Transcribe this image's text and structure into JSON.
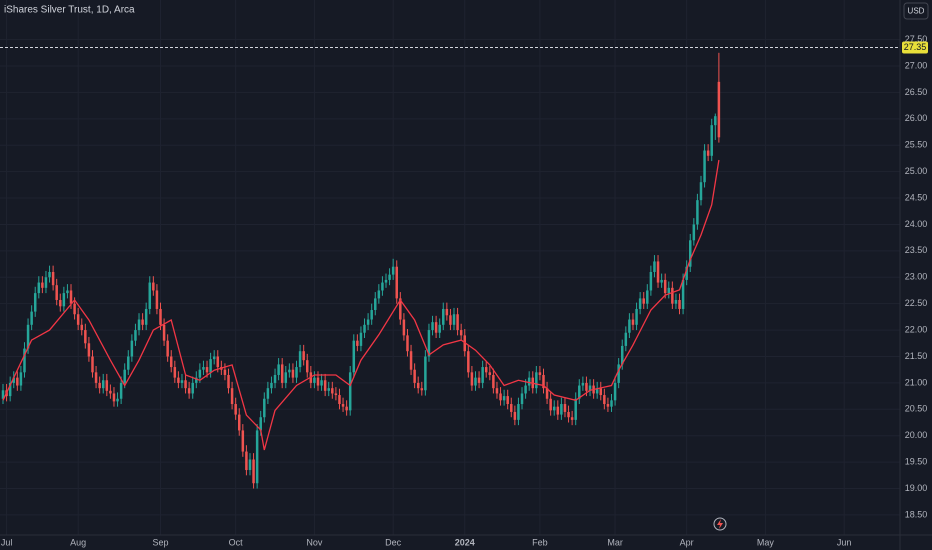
{
  "chart_data": {
    "type": "candlestick",
    "title": "iShares Silver Trust, 1D, Arca",
    "currency": "USD",
    "up_color": "#26a69a",
    "down_color": "#ef5350",
    "candles": [
      [
        20.7,
        20.98,
        20.6,
        20.86
      ],
      [
        20.86,
        20.98,
        20.65,
        20.75
      ],
      [
        20.75,
        21.12,
        20.65,
        21.0
      ],
      [
        21.0,
        21.22,
        20.9,
        21.1
      ],
      [
        21.1,
        21.22,
        20.85,
        20.95
      ],
      [
        20.95,
        21.32,
        20.85,
        21.2
      ],
      [
        21.2,
        21.77,
        21.1,
        21.65
      ],
      [
        21.65,
        22.22,
        21.55,
        22.1
      ],
      [
        22.1,
        22.47,
        22.0,
        22.35
      ],
      [
        22.35,
        22.82,
        22.25,
        22.7
      ],
      [
        22.7,
        23.02,
        22.6,
        22.9
      ],
      [
        22.9,
        23.02,
        22.7,
        22.8
      ],
      [
        22.8,
        23.12,
        22.7,
        23.0
      ],
      [
        23.0,
        23.22,
        22.9,
        23.1
      ],
      [
        23.1,
        23.22,
        22.75,
        22.85
      ],
      [
        22.85,
        22.97,
        22.47,
        22.57
      ],
      [
        22.57,
        22.69,
        22.35,
        22.45
      ],
      [
        22.45,
        22.82,
        22.35,
        22.7
      ],
      [
        22.7,
        22.87,
        22.6,
        22.75
      ],
      [
        22.75,
        22.87,
        22.4,
        22.5
      ],
      [
        22.5,
        22.62,
        22.2,
        22.3
      ],
      [
        22.3,
        22.42,
        22.0,
        22.1
      ],
      [
        22.1,
        22.22,
        21.9,
        22.0
      ],
      [
        22.0,
        22.12,
        21.65,
        21.75
      ],
      [
        21.75,
        21.87,
        21.4,
        21.5
      ],
      [
        21.5,
        21.62,
        21.1,
        21.2
      ],
      [
        21.2,
        21.32,
        20.9,
        21.0
      ],
      [
        21.0,
        21.12,
        20.8,
        20.9
      ],
      [
        20.9,
        21.17,
        20.8,
        21.05
      ],
      [
        21.05,
        21.17,
        20.75,
        20.85
      ],
      [
        20.85,
        20.97,
        20.7,
        20.8
      ],
      [
        20.8,
        20.92,
        20.55,
        20.65
      ],
      [
        20.65,
        20.82,
        20.55,
        20.7
      ],
      [
        20.7,
        21.12,
        20.6,
        21.0
      ],
      [
        21.0,
        21.37,
        20.9,
        21.25
      ],
      [
        21.25,
        21.62,
        21.15,
        21.5
      ],
      [
        21.5,
        21.92,
        21.4,
        21.8
      ],
      [
        21.8,
        22.12,
        21.7,
        22.0
      ],
      [
        22.0,
        22.32,
        21.9,
        22.2
      ],
      [
        22.2,
        22.32,
        22.0,
        22.1
      ],
      [
        22.1,
        22.52,
        22.0,
        22.4
      ],
      [
        22.4,
        23.02,
        22.3,
        22.9
      ],
      [
        22.9,
        23.02,
        22.65,
        22.75
      ],
      [
        22.75,
        22.87,
        22.3,
        22.4
      ],
      [
        22.4,
        22.52,
        22.0,
        22.1
      ],
      [
        22.1,
        22.22,
        21.7,
        21.8
      ],
      [
        21.8,
        21.92,
        21.4,
        21.5
      ],
      [
        21.5,
        21.62,
        21.2,
        21.3
      ],
      [
        21.3,
        21.42,
        21.0,
        21.1
      ],
      [
        21.1,
        21.22,
        20.9,
        21.0
      ],
      [
        21.0,
        21.17,
        20.9,
        21.05
      ],
      [
        21.05,
        21.17,
        20.8,
        20.9
      ],
      [
        20.9,
        21.02,
        20.7,
        20.8
      ],
      [
        20.8,
        21.12,
        20.7,
        21.0
      ],
      [
        21.0,
        21.22,
        20.9,
        21.1
      ],
      [
        21.1,
        21.37,
        21.0,
        21.25
      ],
      [
        21.25,
        21.42,
        21.15,
        21.3
      ],
      [
        21.3,
        21.42,
        21.1,
        21.2
      ],
      [
        21.2,
        21.57,
        21.1,
        21.45
      ],
      [
        21.45,
        21.62,
        21.35,
        21.5
      ],
      [
        21.5,
        21.62,
        21.2,
        21.3
      ],
      [
        21.3,
        21.42,
        21.15,
        21.25
      ],
      [
        21.25,
        21.37,
        21.05,
        21.15
      ],
      [
        21.15,
        21.27,
        20.8,
        20.9
      ],
      [
        20.9,
        21.02,
        20.5,
        20.6
      ],
      [
        20.6,
        20.72,
        20.3,
        20.4
      ],
      [
        20.4,
        20.52,
        20.0,
        20.1
      ],
      [
        20.1,
        20.22,
        19.6,
        19.7
      ],
      [
        19.7,
        19.82,
        19.25,
        19.35
      ],
      [
        19.35,
        19.67,
        19.25,
        19.55
      ],
      [
        19.55,
        19.67,
        19.0,
        19.1
      ],
      [
        19.1,
        20.22,
        19.0,
        20.1
      ],
      [
        20.1,
        20.47,
        20.0,
        20.35
      ],
      [
        20.35,
        20.82,
        20.25,
        20.7
      ],
      [
        20.7,
        21.02,
        20.6,
        20.9
      ],
      [
        20.9,
        21.12,
        20.8,
        21.0
      ],
      [
        21.0,
        21.27,
        20.9,
        21.15
      ],
      [
        21.15,
        21.47,
        21.05,
        21.35
      ],
      [
        21.35,
        21.47,
        20.9,
        21.0
      ],
      [
        21.0,
        21.32,
        20.9,
        21.2
      ],
      [
        21.2,
        21.37,
        21.1,
        21.25
      ],
      [
        21.25,
        21.37,
        21.0,
        21.1
      ],
      [
        21.1,
        21.42,
        21.0,
        21.3
      ],
      [
        21.3,
        21.72,
        21.2,
        21.6
      ],
      [
        21.6,
        21.72,
        21.33,
        21.43
      ],
      [
        21.43,
        21.55,
        21.1,
        21.2
      ],
      [
        21.2,
        21.32,
        20.9,
        21.0
      ],
      [
        21.0,
        21.22,
        20.9,
        21.1
      ],
      [
        21.1,
        21.22,
        20.85,
        20.95
      ],
      [
        20.95,
        21.17,
        20.85,
        21.05
      ],
      [
        21.05,
        21.17,
        20.75,
        20.85
      ],
      [
        20.85,
        21.02,
        20.75,
        20.9
      ],
      [
        20.9,
        21.02,
        20.7,
        20.8
      ],
      [
        20.8,
        20.92,
        20.67,
        20.77
      ],
      [
        20.77,
        20.89,
        20.5,
        20.6
      ],
      [
        20.6,
        20.72,
        20.45,
        20.55
      ],
      [
        20.55,
        20.67,
        20.38,
        20.48
      ],
      [
        20.48,
        21.32,
        20.38,
        21.2
      ],
      [
        21.2,
        21.92,
        21.1,
        21.8
      ],
      [
        21.8,
        21.92,
        21.6,
        21.7
      ],
      [
        21.7,
        22.07,
        21.6,
        21.95
      ],
      [
        21.95,
        22.22,
        21.85,
        22.1
      ],
      [
        22.1,
        22.32,
        22.0,
        22.2
      ],
      [
        22.2,
        22.5,
        22.1,
        22.38
      ],
      [
        22.38,
        22.72,
        22.28,
        22.6
      ],
      [
        22.6,
        22.87,
        22.5,
        22.75
      ],
      [
        22.75,
        23.02,
        22.65,
        22.9
      ],
      [
        22.9,
        23.07,
        22.8,
        22.95
      ],
      [
        22.95,
        23.17,
        22.85,
        23.05
      ],
      [
        23.05,
        23.35,
        22.95,
        23.2
      ],
      [
        23.2,
        23.32,
        22.5,
        22.6
      ],
      [
        22.6,
        22.72,
        22.1,
        22.2
      ],
      [
        22.2,
        22.32,
        21.8,
        21.9
      ],
      [
        21.9,
        22.02,
        21.5,
        21.6
      ],
      [
        21.6,
        21.72,
        21.15,
        21.25
      ],
      [
        21.25,
        21.37,
        20.9,
        21.0
      ],
      [
        21.0,
        21.12,
        20.8,
        20.9
      ],
      [
        20.9,
        21.02,
        20.76,
        20.86
      ],
      [
        20.86,
        21.62,
        20.76,
        21.5
      ],
      [
        21.5,
        22.12,
        21.4,
        22.0
      ],
      [
        22.0,
        22.27,
        21.9,
        22.15
      ],
      [
        22.15,
        22.27,
        21.85,
        21.95
      ],
      [
        21.95,
        22.22,
        21.85,
        22.1
      ],
      [
        22.1,
        22.52,
        22.0,
        22.4
      ],
      [
        22.4,
        22.52,
        22.18,
        22.28
      ],
      [
        22.28,
        22.4,
        22.0,
        22.1
      ],
      [
        22.1,
        22.42,
        22.0,
        22.3
      ],
      [
        22.3,
        22.42,
        21.9,
        22.0
      ],
      [
        22.0,
        22.12,
        21.8,
        21.9
      ],
      [
        21.9,
        22.02,
        21.5,
        21.6
      ],
      [
        21.6,
        21.72,
        21.1,
        21.2
      ],
      [
        21.2,
        21.32,
        20.85,
        20.95
      ],
      [
        20.95,
        21.22,
        20.85,
        21.1
      ],
      [
        21.1,
        21.22,
        20.9,
        21.0
      ],
      [
        21.0,
        21.42,
        20.9,
        21.3
      ],
      [
        21.3,
        21.42,
        21.1,
        21.2
      ],
      [
        21.2,
        21.32,
        21.05,
        21.15
      ],
      [
        21.15,
        21.27,
        20.8,
        20.9
      ],
      [
        20.9,
        21.02,
        20.7,
        20.8
      ],
      [
        20.8,
        20.92,
        20.57,
        20.67
      ],
      [
        20.67,
        20.87,
        20.57,
        20.75
      ],
      [
        20.75,
        20.87,
        20.5,
        20.6
      ],
      [
        20.6,
        20.72,
        20.35,
        20.45
      ],
      [
        20.45,
        20.57,
        20.2,
        20.3
      ],
      [
        20.3,
        20.72,
        20.2,
        20.6
      ],
      [
        20.6,
        20.92,
        20.5,
        20.8
      ],
      [
        20.8,
        21.07,
        20.7,
        20.95
      ],
      [
        20.95,
        21.22,
        20.85,
        21.1
      ],
      [
        21.1,
        21.22,
        20.8,
        20.9
      ],
      [
        20.9,
        21.32,
        20.8,
        21.2
      ],
      [
        21.2,
        21.32,
        21.05,
        21.15
      ],
      [
        21.15,
        21.27,
        20.8,
        20.9
      ],
      [
        20.9,
        21.02,
        20.6,
        20.7
      ],
      [
        20.7,
        20.82,
        20.38,
        20.48
      ],
      [
        20.48,
        20.67,
        20.38,
        20.55
      ],
      [
        20.55,
        20.67,
        20.3,
        20.4
      ],
      [
        20.4,
        20.72,
        20.3,
        20.6
      ],
      [
        20.6,
        20.72,
        20.35,
        20.45
      ],
      [
        20.45,
        20.57,
        20.25,
        20.35
      ],
      [
        20.35,
        20.47,
        20.2,
        20.3
      ],
      [
        20.3,
        20.82,
        20.2,
        20.7
      ],
      [
        20.7,
        21.07,
        20.6,
        20.95
      ],
      [
        20.95,
        21.12,
        20.85,
        21.0
      ],
      [
        21.0,
        21.12,
        20.75,
        20.85
      ],
      [
        20.85,
        21.07,
        20.75,
        20.95
      ],
      [
        20.95,
        21.07,
        20.7,
        20.8
      ],
      [
        20.8,
        21.02,
        20.7,
        20.9
      ],
      [
        20.9,
        21.02,
        20.67,
        20.77
      ],
      [
        20.77,
        20.89,
        20.5,
        20.6
      ],
      [
        20.6,
        20.72,
        20.45,
        20.55
      ],
      [
        20.55,
        20.79,
        20.45,
        20.67
      ],
      [
        20.67,
        21.12,
        20.57,
        21.0
      ],
      [
        21.0,
        21.47,
        20.9,
        21.35
      ],
      [
        21.35,
        21.82,
        21.25,
        21.7
      ],
      [
        21.7,
        22.07,
        21.6,
        21.95
      ],
      [
        21.95,
        22.32,
        21.85,
        22.2
      ],
      [
        22.2,
        22.32,
        22.0,
        22.1
      ],
      [
        22.1,
        22.52,
        22.0,
        22.4
      ],
      [
        22.4,
        22.72,
        22.3,
        22.6
      ],
      [
        22.6,
        22.72,
        22.4,
        22.5
      ],
      [
        22.5,
        22.87,
        22.4,
        22.75
      ],
      [
        22.75,
        23.22,
        22.65,
        23.1
      ],
      [
        23.1,
        23.42,
        23.0,
        23.3
      ],
      [
        23.3,
        23.42,
        22.8,
        22.9
      ],
      [
        22.9,
        23.07,
        22.8,
        22.95
      ],
      [
        22.95,
        23.07,
        22.6,
        22.7
      ],
      [
        22.7,
        22.92,
        22.6,
        22.8
      ],
      [
        22.8,
        22.92,
        22.4,
        22.5
      ],
      [
        22.5,
        22.69,
        22.4,
        22.57
      ],
      [
        22.57,
        22.69,
        22.3,
        22.4
      ],
      [
        22.4,
        23.07,
        22.3,
        22.95
      ],
      [
        22.95,
        23.32,
        22.85,
        23.2
      ],
      [
        23.2,
        23.82,
        23.1,
        23.7
      ],
      [
        23.7,
        24.12,
        23.6,
        24.0
      ],
      [
        24.0,
        24.58,
        23.9,
        24.46
      ],
      [
        24.46,
        24.92,
        24.36,
        24.8
      ],
      [
        24.8,
        25.52,
        24.7,
        25.4
      ],
      [
        25.4,
        25.52,
        25.2,
        25.3
      ],
      [
        25.3,
        26.0,
        25.2,
        25.88
      ],
      [
        25.88,
        26.1,
        25.6,
        26.05
      ],
      [
        26.7,
        27.25,
        25.55,
        25.65
      ]
    ],
    "overlay": {
      "color": "#f23645",
      "x": [
        0,
        8,
        13,
        20,
        24,
        30,
        34,
        38,
        42,
        47,
        51,
        55,
        59,
        64,
        68,
        72,
        73,
        76,
        82,
        87,
        93,
        97,
        100,
        105,
        111,
        115,
        119,
        123,
        128,
        132,
        136,
        140,
        144,
        151,
        154,
        160,
        164,
        170,
        172,
        176,
        181,
        185,
        189,
        192,
        195,
        198,
        200
      ],
      "values": [
        20.67,
        21.81,
        22.0,
        22.57,
        22.19,
        21.43,
        20.95,
        21.43,
        22.0,
        22.19,
        21.15,
        21.05,
        21.24,
        21.34,
        20.39,
        20.11,
        19.73,
        20.48,
        20.95,
        21.15,
        21.15,
        20.95,
        21.43,
        21.91,
        22.57,
        22.19,
        21.53,
        21.72,
        21.81,
        21.62,
        21.34,
        20.95,
        21.05,
        20.95,
        20.77,
        20.67,
        20.86,
        20.95,
        21.24,
        21.72,
        22.38,
        22.66,
        22.76,
        23.33,
        23.8,
        24.37,
        25.22
      ]
    },
    "last_price": 27.35,
    "xlim": [
      -0.84,
      250.6
    ],
    "xticks": [
      {
        "value": 1,
        "label": "Jul"
      },
      {
        "value": 21,
        "label": "Aug"
      },
      {
        "value": 44,
        "label": "Sep"
      },
      {
        "value": 65,
        "label": "Oct"
      },
      {
        "value": 87,
        "label": "Nov"
      },
      {
        "value": 109,
        "label": "Dec"
      },
      {
        "value": 129,
        "label": "2024"
      },
      {
        "value": 150,
        "label": "Feb"
      },
      {
        "value": 171,
        "label": "Mar"
      },
      {
        "value": 191,
        "label": "Apr"
      },
      {
        "value": 213,
        "label": "May"
      },
      {
        "value": 235,
        "label": "Jun"
      }
    ],
    "ylim": [
      18.12,
      28.25
    ],
    "yticks": [
      {
        "value": 18.5,
        "label": "18.50"
      },
      {
        "value": 19,
        "label": "19.00"
      },
      {
        "value": 19.5,
        "label": "19.50"
      },
      {
        "value": 20,
        "label": "20.00"
      },
      {
        "value": 20.5,
        "label": "20.50"
      },
      {
        "value": 21,
        "label": "21.00"
      },
      {
        "value": 21.5,
        "label": "21.50"
      },
      {
        "value": 22,
        "label": "22.00"
      },
      {
        "value": 22.5,
        "label": "22.50"
      },
      {
        "value": 23,
        "label": "23.00"
      },
      {
        "value": 23.5,
        "label": "23.50"
      },
      {
        "value": 24,
        "label": "24.00"
      },
      {
        "value": 24.5,
        "label": "24.50"
      },
      {
        "value": 25,
        "label": "25.00"
      },
      {
        "value": 25.5,
        "label": "25.50"
      },
      {
        "value": 26,
        "label": "26.00"
      },
      {
        "value": 26.5,
        "label": "26.50"
      },
      {
        "value": 27,
        "label": "27.00"
      },
      {
        "value": 27.5,
        "label": "27.50"
      }
    ],
    "grid": true
  }
}
